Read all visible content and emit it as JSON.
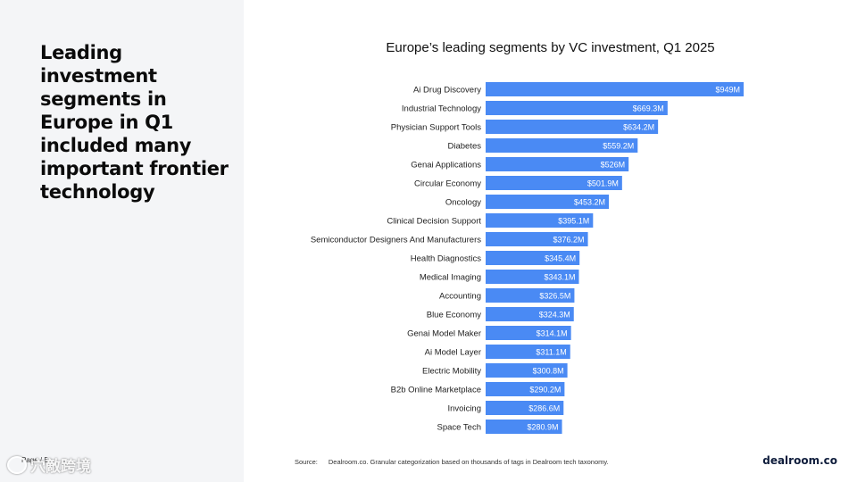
{
  "headline": "Leading investment segments in Europe in Q1 included many important frontier technology",
  "page_label": "Page / 5",
  "watermark_text": "穴敵跨境",
  "source_label": "Source:",
  "source_text": "Dealroom.co. Granular categorization based on thousands of tags in Dealroom tech taxonomy.",
  "brand": "dealroom.co",
  "colors": {
    "bar": "#4a8af4",
    "left_panel": "#f4f5f7"
  },
  "chart_data": {
    "type": "bar",
    "orientation": "horizontal",
    "title": "Europe’s leading segments by VC investment, Q1 2025",
    "xlabel": "",
    "ylabel": "",
    "unit": "$M",
    "xlim": [
      0,
      949
    ],
    "grid": false,
    "categories": [
      "Ai Drug Discovery",
      "Industrial Technology",
      "Physician Support Tools",
      "Diabetes",
      "Genai Applications",
      "Circular Economy",
      "Oncology",
      "Clinical Decision Support",
      "Semiconductor Designers And Manufacturers",
      "Health Diagnostics",
      "Medical Imaging",
      "Accounting",
      "Blue Economy",
      "Genai Model Maker",
      "Ai Model Layer",
      "Electric Mobility",
      "B2b Online Marketplace",
      "Invoicing",
      "Space Tech"
    ],
    "values": [
      949,
      669.3,
      634.2,
      559.2,
      526,
      501.9,
      453.2,
      395.1,
      376.2,
      345.4,
      343.1,
      326.5,
      324.3,
      314.1,
      311.1,
      300.8,
      290.2,
      286.6,
      280.9
    ],
    "labels": [
      "$949M",
      "$669.3M",
      "$634.2M",
      "$559.2M",
      "$526M",
      "$501.9M",
      "$453.2M",
      "$395.1M",
      "$376.2M",
      "$345.4M",
      "$343.1M",
      "$326.5M",
      "$324.3M",
      "$314.1M",
      "$311.1M",
      "$300.8M",
      "$290.2M",
      "$286.6M",
      "$280.9M"
    ]
  }
}
